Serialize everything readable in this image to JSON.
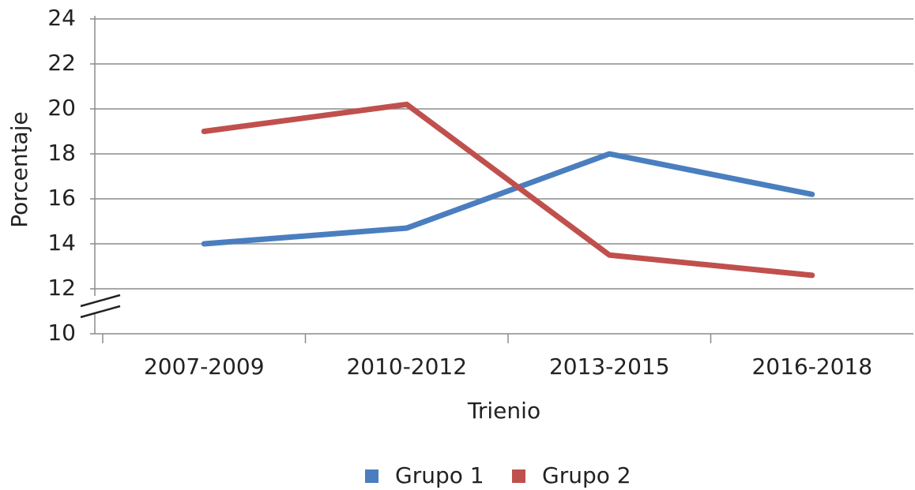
{
  "chart_data": {
    "type": "line",
    "x_label": "Trienio",
    "y_label": "Porcentaje",
    "categories": [
      "2007-2009",
      "2010-2012",
      "2013-2015",
      "2016-2018"
    ],
    "series": [
      {
        "name": "Grupo 1",
        "color": "#4a7ebf",
        "values": [
          14,
          14.7,
          18,
          16.2
        ]
      },
      {
        "name": "Grupo 2",
        "color": "#c0504d",
        "values": [
          19,
          20.2,
          13.5,
          12.6
        ]
      }
    ],
    "ylim": [
      10,
      24
    ],
    "yticks": [
      10,
      12,
      14,
      16,
      18,
      20,
      22,
      24
    ],
    "grid": true,
    "legend": "bottom"
  }
}
